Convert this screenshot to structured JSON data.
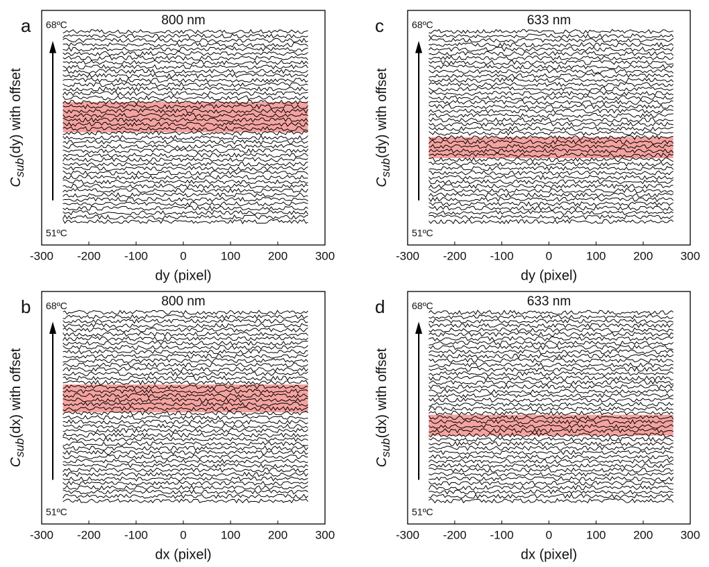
{
  "chart_data": [
    {
      "type": "line",
      "panel_label": "a",
      "title": "800 nm",
      "title_color": "#f0901e",
      "x_label": "dy (pixel)",
      "y_label": {
        "base": "C",
        "sub": "sub",
        "rest": "(dy) with offset"
      },
      "annotations": [
        "68ºC",
        "51ºC"
      ],
      "xlim": [
        -300,
        300
      ],
      "xticks": [
        -300,
        -200,
        -100,
        0,
        100,
        200,
        300
      ],
      "highlight_color": "#f4a3a0"
    },
    {
      "type": "line",
      "panel_label": "b",
      "title": "800 nm",
      "title_color": "#f0901e",
      "x_label": "dx (pixel)",
      "y_label": {
        "base": "C",
        "sub": "sub",
        "rest": "(dx) with offset"
      },
      "annotations": [
        "68ºC",
        "51ºC"
      ],
      "xlim": [
        -300,
        300
      ],
      "xticks": [
        -300,
        -200,
        -100,
        0,
        100,
        200,
        300
      ],
      "highlight_color": "#f4a3a0"
    },
    {
      "type": "line",
      "panel_label": "c",
      "title": "633 nm",
      "title_color": "#e8201c",
      "x_label": "dy (pixel)",
      "y_label": {
        "base": "C",
        "sub": "sub",
        "rest": "(dy) with offset"
      },
      "annotations": [
        "68ºC",
        "51ºC"
      ],
      "xlim": [
        -300,
        300
      ],
      "xticks": [
        -300,
        -200,
        -100,
        0,
        100,
        200,
        300
      ],
      "highlight_color": "#f4a3a0"
    },
    {
      "type": "line",
      "panel_label": "d",
      "title": "633 nm",
      "title_color": "#e8201c",
      "x_label": "dx (pixel)",
      "y_label": {
        "base": "C",
        "sub": "sub",
        "rest": "(dx) with offset"
      },
      "annotations": [
        "68ºC",
        "51ºC"
      ],
      "xlim": [
        -300,
        300
      ],
      "xticks": [
        -300,
        -200,
        -100,
        0,
        100,
        200,
        300
      ],
      "highlight_color": "#f4a3a0"
    }
  ]
}
